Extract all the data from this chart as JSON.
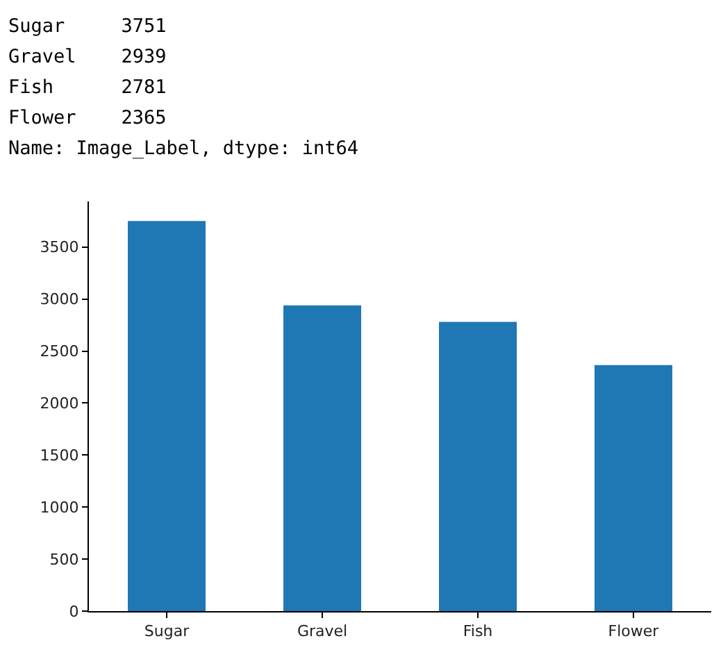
{
  "chart_data": {
    "type": "bar",
    "categories": [
      "Sugar",
      "Gravel",
      "Fish",
      "Flower"
    ],
    "values": [
      3751,
      2939,
      2781,
      2365
    ],
    "color": "#1f77b4",
    "ylim": [
      0,
      3939
    ],
    "yticks": [
      0,
      500,
      1000,
      1500,
      2000,
      2500,
      3000,
      3500
    ],
    "annotations": [
      "Sugar     3751",
      "Gravel    2939",
      "Fish      2781",
      "Flower    2365",
      "Name: Image_Label, dtype: int64"
    ],
    "grid": false,
    "legend": false
  }
}
